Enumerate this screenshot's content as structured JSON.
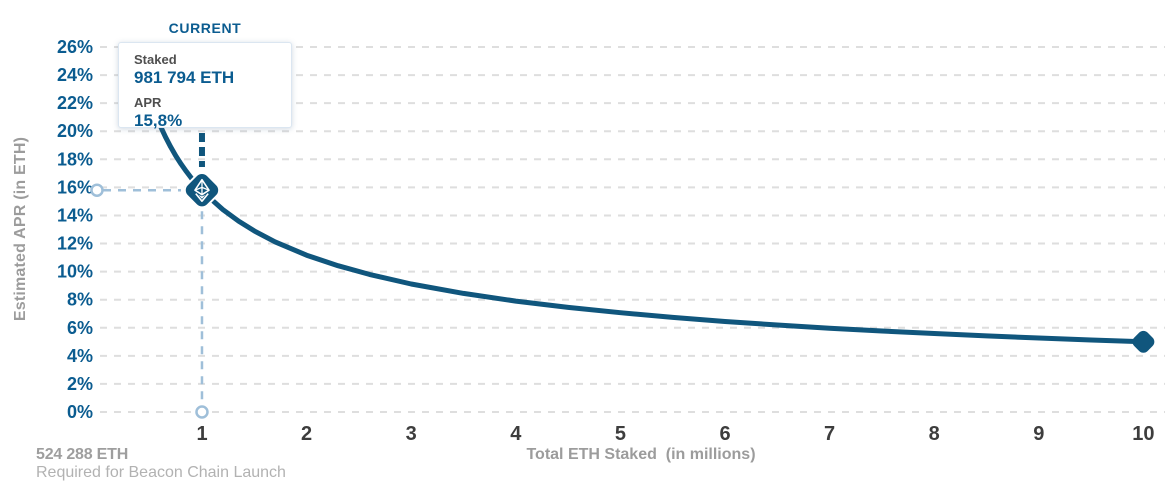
{
  "header": {
    "current_label": "CURRENT"
  },
  "tooltip": {
    "staked_label": "Staked",
    "staked_value": "981 794 ETH",
    "apr_label": "APR",
    "apr_value": "15,8%"
  },
  "footer": {
    "launch_eth": "524 288 ETH",
    "launch_note": "Required for Beacon Chain Launch"
  },
  "colors": {
    "curve_blue": "#10567d",
    "text_blue": "#0b5c90",
    "guide_blue": "#9fbfd9",
    "grid_gray": "#dedede",
    "x_tick_gray": "#3d3d3d",
    "muted_gray": "#9c9c9c",
    "white": "#ffffff"
  },
  "chart_data": {
    "type": "line",
    "title": "",
    "xlabel": "Total ETH Staked  (in millions)",
    "ylabel": "Estimated APR (in ETH)",
    "x_ticks": [
      1,
      2,
      3,
      4,
      5,
      6,
      7,
      8,
      9,
      10
    ],
    "y_ticks": [
      {
        "value": 26,
        "label": "26%"
      },
      {
        "value": 24,
        "label": "24%"
      },
      {
        "value": 22,
        "label": "22%"
      },
      {
        "value": 20,
        "label": "20%"
      },
      {
        "value": 18,
        "label": "18%"
      },
      {
        "value": 16,
        "label": "16%"
      },
      {
        "value": 14,
        "label": "14%"
      },
      {
        "value": 12,
        "label": "12%"
      },
      {
        "value": 10,
        "label": "10%"
      },
      {
        "value": 8,
        "label": "8%"
      },
      {
        "value": 6,
        "label": "6%"
      },
      {
        "value": 4,
        "label": "4%"
      },
      {
        "value": 2,
        "label": "2%"
      },
      {
        "value": 0,
        "label": "0%"
      }
    ],
    "xlim": [
      0.03,
      10.2
    ],
    "ylim": [
      0,
      27
    ],
    "grid": "horizontal-dashed",
    "legend": "none",
    "series": [
      {
        "name": "Estimated APR",
        "formula": "APR% = 15.8 / sqrt(ETH_staked_millions)",
        "points": [
          [
            0.56,
            21.12
          ],
          [
            0.6,
            20.4
          ],
          [
            0.65,
            19.6
          ],
          [
            0.7,
            18.89
          ],
          [
            0.75,
            18.24
          ],
          [
            0.8,
            17.66
          ],
          [
            0.85,
            17.14
          ],
          [
            0.9,
            16.65
          ],
          [
            1.0,
            15.8
          ],
          [
            1.1,
            15.07
          ],
          [
            1.2,
            14.42
          ],
          [
            1.35,
            13.6
          ],
          [
            1.5,
            12.9
          ],
          [
            1.7,
            12.12
          ],
          [
            2.0,
            11.17
          ],
          [
            2.3,
            10.42
          ],
          [
            2.6,
            9.8
          ],
          [
            3.0,
            9.12
          ],
          [
            3.5,
            8.45
          ],
          [
            4.0,
            7.9
          ],
          [
            4.5,
            7.45
          ],
          [
            5.0,
            7.07
          ],
          [
            5.5,
            6.74
          ],
          [
            6.0,
            6.45
          ],
          [
            6.5,
            6.2
          ],
          [
            7.0,
            5.97
          ],
          [
            7.5,
            5.77
          ],
          [
            8.0,
            5.59
          ],
          [
            8.5,
            5.42
          ],
          [
            9.0,
            5.27
          ],
          [
            9.5,
            5.13
          ],
          [
            10.0,
            5.0
          ]
        ]
      }
    ],
    "current_point": {
      "x_millions": 0.981794,
      "apr_percent": 15.8
    },
    "end_point": {
      "x_millions": 10,
      "apr_percent": 5.0
    }
  }
}
